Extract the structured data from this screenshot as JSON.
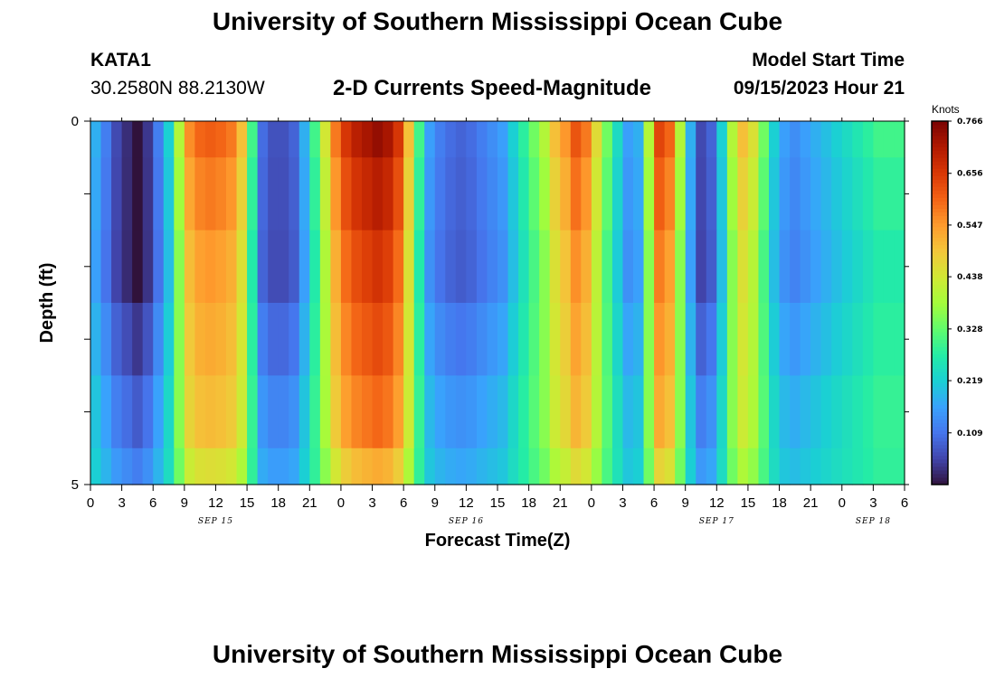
{
  "header": {
    "title": "University of Southern Mississippi Ocean Cube",
    "station_id": "KATA1",
    "station_coords": "30.2580N  88.2130W",
    "subtitle": "2-D Currents Speed-Magnitude",
    "model_label": "Model Start Time",
    "model_time": "09/15/2023 Hour 21"
  },
  "footer": {
    "title": "University of Southern Mississippi Ocean Cube"
  },
  "colors": {
    "colormap": [
      "#30123b",
      "#4145ab",
      "#4675ed",
      "#39a2fc",
      "#1bcfd4",
      "#24eca6",
      "#61fc6c",
      "#a4fc3b",
      "#d1e834",
      "#f3c63a",
      "#fe9b2d",
      "#f36315",
      "#d93806",
      "#b11901",
      "#7a0403"
    ]
  },
  "chart_data": {
    "type": "heatmap",
    "title": "2-D Currents Speed-Magnitude",
    "xlabel": "Forecast Time(Z)",
    "ylabel": "Depth (ft)",
    "ylim": [
      0,
      5
    ],
    "yticks": [
      "0",
      "5"
    ],
    "xlim": [
      0,
      78
    ],
    "xtick_labels": [
      "0",
      "3",
      "6",
      "9",
      "12",
      "15",
      "18",
      "21",
      "0",
      "3",
      "6",
      "9",
      "12",
      "15",
      "18",
      "21",
      "0",
      "3",
      "6",
      "9",
      "12",
      "15",
      "18",
      "21",
      "0",
      "3",
      "6"
    ],
    "date_labels": [
      {
        "label": "SEP 15",
        "hour": 12
      },
      {
        "label": "SEP 16",
        "hour": 36
      },
      {
        "label": "SEP 17",
        "hour": 60
      },
      {
        "label": "SEP 18",
        "hour": 75
      }
    ],
    "colorbar": {
      "title": "Knots",
      "vmin": 0.0,
      "vmax": 0.766,
      "ticks": [
        0.109,
        0.219,
        0.328,
        0.438,
        0.547,
        0.656,
        0.766
      ],
      "tick_labels": [
        "0.109",
        "0.219",
        "0.328",
        "0.438",
        "0.547",
        "0.656",
        "0.766"
      ]
    },
    "depth_rows": [
      "0.0-0.5",
      "0.5-1.5",
      "1.5-2.5",
      "2.5-3.5",
      "3.5-4.5",
      "4.5-5.0"
    ],
    "speed_profile_hours": [
      0,
      1,
      2,
      3,
      4,
      5,
      6,
      7,
      8,
      9,
      10,
      11,
      12,
      13,
      14,
      15,
      16,
      17,
      18,
      19,
      20,
      21,
      22,
      23,
      24,
      25,
      26,
      27,
      28,
      29,
      30,
      31,
      32,
      33,
      34,
      35,
      36,
      37,
      38,
      39,
      40,
      41,
      42,
      43,
      44,
      45,
      46,
      47,
      48,
      49,
      50,
      51,
      52,
      53,
      54,
      55,
      56,
      57,
      58,
      59,
      60,
      61,
      62,
      63,
      64,
      65,
      66,
      67,
      68,
      69,
      70,
      71,
      72,
      73,
      74,
      75,
      76,
      77,
      78
    ],
    "surface_speed_knots": [
      0.18,
      0.12,
      0.06,
      0.03,
      0.0,
      0.04,
      0.12,
      0.22,
      0.4,
      0.56,
      0.6,
      0.61,
      0.6,
      0.58,
      0.5,
      0.3,
      0.1,
      0.07,
      0.07,
      0.09,
      0.18,
      0.3,
      0.44,
      0.58,
      0.66,
      0.7,
      0.72,
      0.74,
      0.72,
      0.66,
      0.5,
      0.3,
      0.16,
      0.12,
      0.1,
      0.09,
      0.1,
      0.12,
      0.14,
      0.16,
      0.22,
      0.28,
      0.34,
      0.4,
      0.5,
      0.55,
      0.62,
      0.58,
      0.46,
      0.34,
      0.24,
      0.16,
      0.18,
      0.4,
      0.64,
      0.6,
      0.4,
      0.18,
      0.06,
      0.09,
      0.22,
      0.4,
      0.5,
      0.45,
      0.34,
      0.22,
      0.16,
      0.14,
      0.16,
      0.18,
      0.2,
      0.22,
      0.24,
      0.26,
      0.28,
      0.3,
      0.3,
      0.3,
      0.3
    ],
    "depth_factors": [
      1.0,
      0.95,
      0.9,
      0.8,
      0.7,
      0.55
    ]
  }
}
